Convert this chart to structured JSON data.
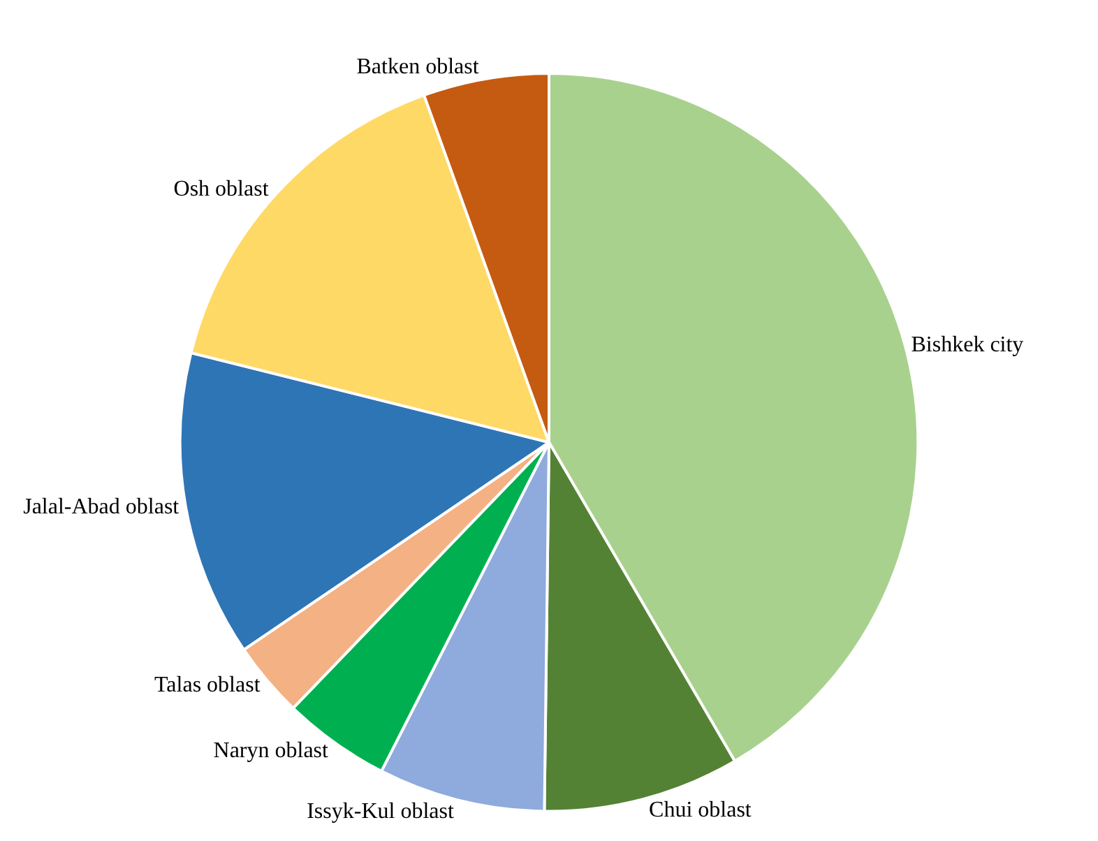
{
  "chart_data": {
    "type": "pie",
    "categories": [
      "Bishkek city",
      "Chui oblast",
      "Issyk-Kul oblast",
      "Naryn oblast",
      "Talas oblast",
      "Jalal-Abad oblast",
      "Osh oblast",
      "Batken oblast"
    ],
    "values": [
      41.6,
      8.6,
      7.3,
      4.7,
      3.3,
      13.4,
      15.6,
      5.5
    ],
    "colors": [
      "#a9d18e",
      "#548235",
      "#8faadc",
      "#00b050",
      "#f4b183",
      "#2e75b6",
      "#ffd966",
      "#c55a11"
    ],
    "legend": false
  }
}
